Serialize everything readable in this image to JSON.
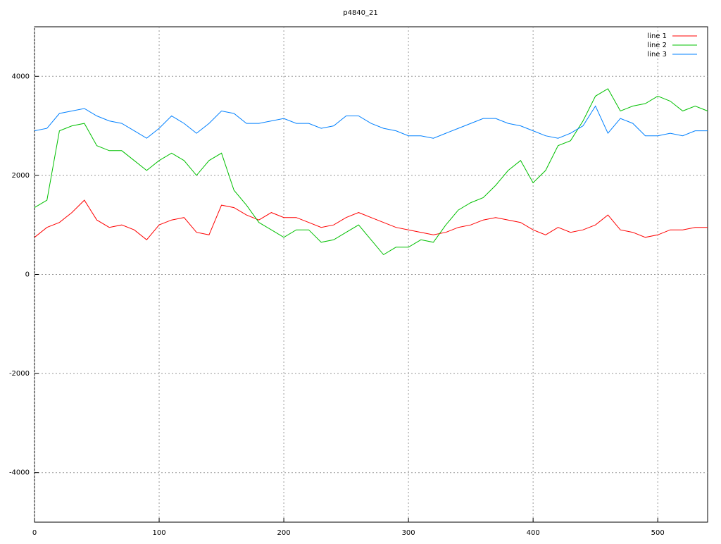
{
  "chart_data": {
    "type": "line",
    "title": "p4840_21",
    "x": [
      0,
      10,
      20,
      30,
      40,
      50,
      60,
      70,
      80,
      90,
      100,
      110,
      120,
      130,
      140,
      150,
      160,
      170,
      180,
      190,
      200,
      210,
      220,
      230,
      240,
      250,
      260,
      270,
      280,
      290,
      300,
      310,
      320,
      330,
      340,
      350,
      360,
      370,
      380,
      390,
      400,
      410,
      420,
      430,
      440,
      450,
      460,
      470,
      480,
      490,
      500,
      510,
      520,
      530,
      540
    ],
    "series": [
      {
        "name": "line 1",
        "color": "#ff0000",
        "values": [
          750,
          950,
          1050,
          1250,
          1500,
          1100,
          950,
          1000,
          900,
          700,
          1000,
          1100,
          1150,
          850,
          800,
          1400,
          1350,
          1200,
          1100,
          1250,
          1150,
          1150,
          1050,
          950,
          1000,
          1150,
          1250,
          1150,
          1050,
          950,
          900,
          850,
          800,
          850,
          950,
          1000,
          1100,
          1150,
          1100,
          1050,
          900,
          800,
          950,
          850,
          900,
          1000,
          1200,
          900,
          850,
          750,
          800,
          900,
          900,
          950,
          950
        ]
      },
      {
        "name": "line 2",
        "color": "#00c000",
        "values": [
          1350,
          1500,
          2900,
          3000,
          3050,
          2600,
          2500,
          2500,
          2300,
          2100,
          2300,
          2450,
          2300,
          2000,
          2300,
          2450,
          1700,
          1400,
          1050,
          900,
          750,
          900,
          900,
          650,
          700,
          850,
          1000,
          700,
          400,
          550,
          550,
          700,
          650,
          1000,
          1300,
          1450,
          1550,
          1800,
          2100,
          2300,
          1850,
          2100,
          2600,
          2700,
          3100,
          3600,
          3750,
          3300,
          3400,
          3450,
          3600,
          3500,
          3300,
          3400,
          3300
        ]
      },
      {
        "name": "line 3",
        "color": "#0080ff",
        "values": [
          2900,
          2950,
          3250,
          3300,
          3350,
          3200,
          3100,
          3050,
          2900,
          2750,
          2950,
          3200,
          3050,
          2850,
          3050,
          3300,
          3250,
          3050,
          3050,
          3100,
          3150,
          3050,
          3050,
          2950,
          3000,
          3200,
          3200,
          3050,
          2950,
          2900,
          2800,
          2800,
          2750,
          2850,
          2950,
          3050,
          3150,
          3150,
          3050,
          3000,
          2900,
          2800,
          2750,
          2850,
          3000,
          3400,
          2850,
          3150,
          3050,
          2800,
          2800,
          2850,
          2800,
          2900,
          2900
        ]
      }
    ],
    "xlim": [
      0,
      540
    ],
    "xticks": [
      0,
      100,
      200,
      300,
      400,
      500
    ],
    "ylim": [
      -5000,
      5000
    ],
    "yticks": [
      -4000,
      -2000,
      0,
      2000,
      4000
    ],
    "grid": true,
    "legend": "top-right"
  }
}
